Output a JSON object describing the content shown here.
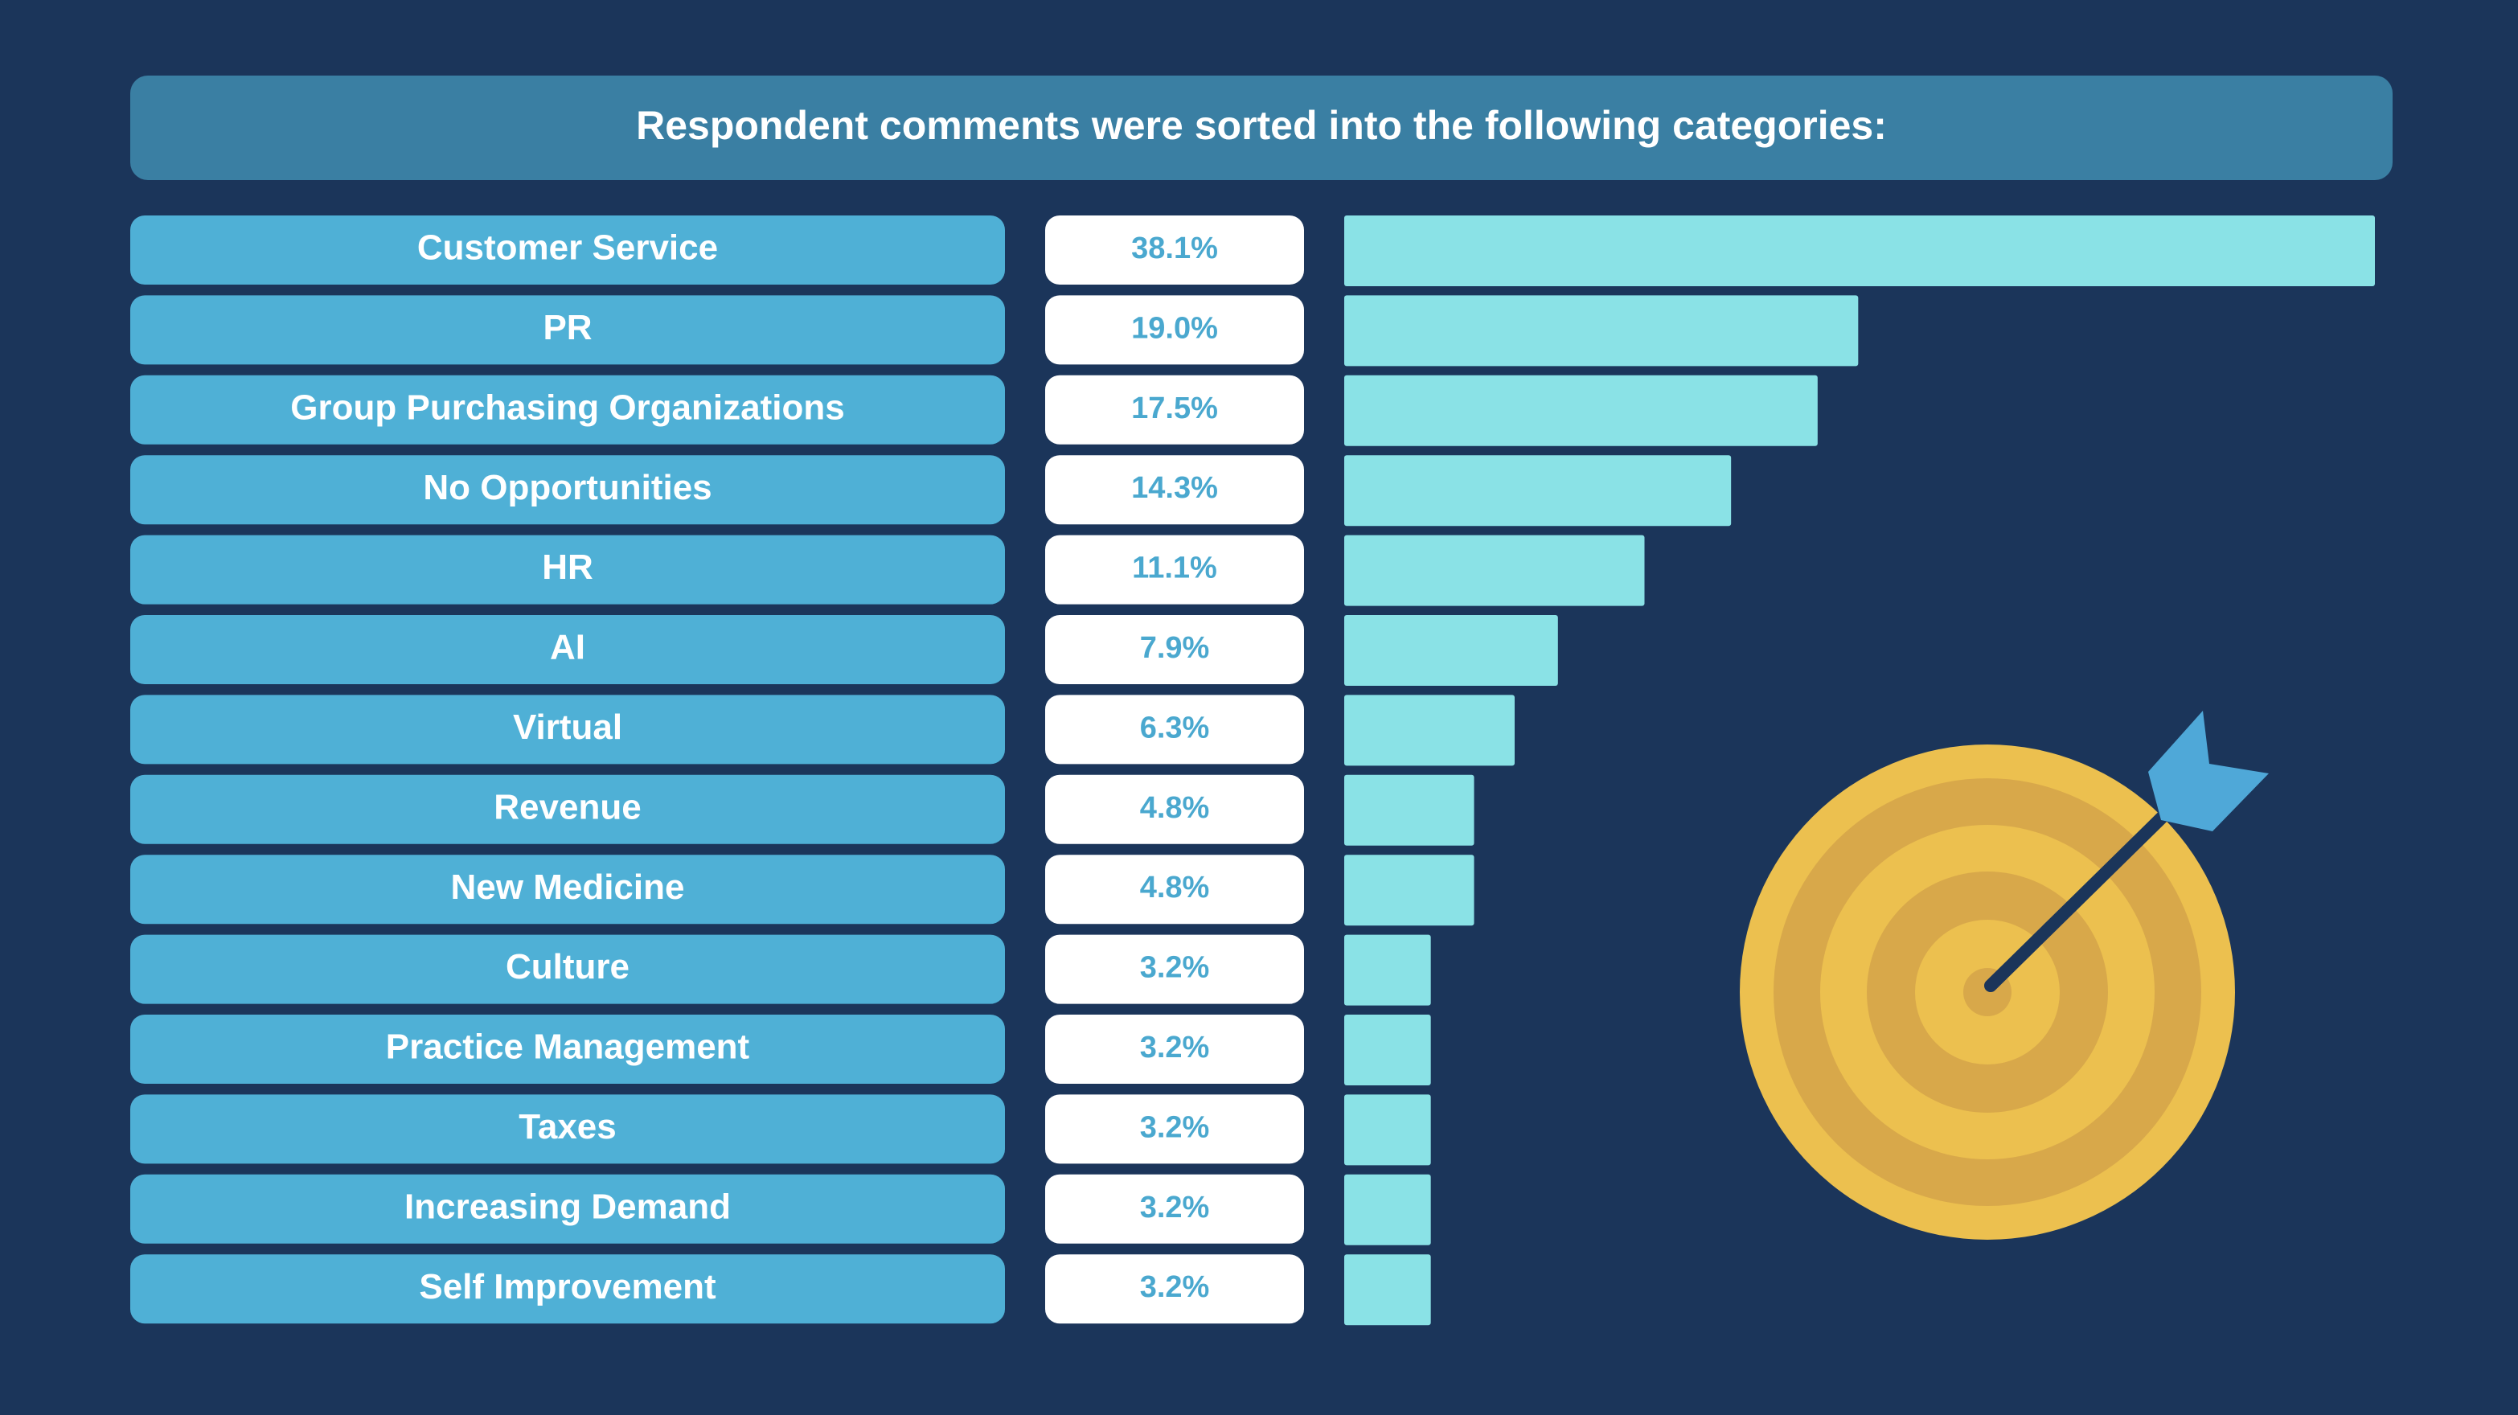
{
  "chart_data": {
    "type": "bar",
    "title": "Respondent comments were sorted into the following categories:",
    "categories": [
      "Customer Service",
      "PR",
      "Group Purchasing Organizations",
      "No Opportunities",
      "HR",
      "AI",
      "Virtual",
      "Revenue",
      "New Medicine",
      "Culture",
      "Practice Management",
      "Taxes",
      "Increasing Demand",
      "Self Improvement"
    ],
    "values": [
      38.1,
      19.0,
      17.5,
      14.3,
      11.1,
      7.9,
      6.3,
      4.8,
      4.8,
      3.2,
      3.2,
      3.2,
      3.2,
      3.2
    ],
    "value_labels": [
      "38.1%",
      "19.0%",
      "17.5%",
      "14.3%",
      "11.1%",
      "7.9%",
      "6.3%",
      "4.8%",
      "4.8%",
      "3.2%",
      "3.2%",
      "3.2%",
      "3.2%",
      "3.2%"
    ],
    "color": "#8ae2e6"
  }
}
